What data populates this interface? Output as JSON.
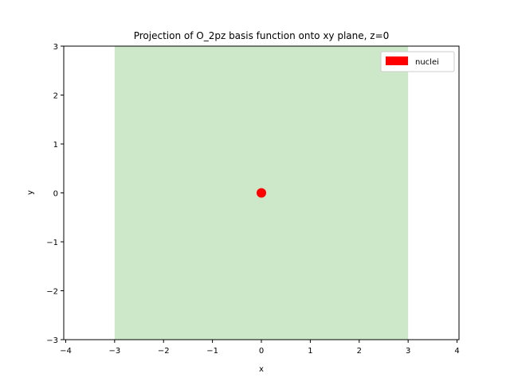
{
  "chart_data": {
    "type": "scatter",
    "title": "Projection of O_2pz basis function onto xy plane, z=0",
    "xlabel": "x",
    "ylabel": "y",
    "xlim": [
      -4.04,
      4.04
    ],
    "ylim": [
      -3,
      3
    ],
    "xticks": [
      -4,
      -3,
      -2,
      -1,
      0,
      1,
      2,
      3,
      4
    ],
    "yticks": [
      -3,
      -2,
      -1,
      0,
      1,
      2,
      3
    ],
    "xtick_labels": [
      "−4",
      "−3",
      "−2",
      "−1",
      "0",
      "1",
      "2",
      "3",
      "4"
    ],
    "ytick_labels": [
      "−3",
      "−2",
      "−1",
      "0",
      "1",
      "2",
      "3"
    ],
    "region": {
      "x": [
        -3,
        3
      ],
      "y": [
        -3,
        3
      ],
      "color": "#cde8c8"
    },
    "series": [
      {
        "name": "nuclei",
        "x": [
          0
        ],
        "y": [
          0
        ],
        "color": "#ff0000"
      }
    ],
    "legend": {
      "position": "top-right",
      "entries": [
        "nuclei"
      ]
    },
    "grid": false
  }
}
